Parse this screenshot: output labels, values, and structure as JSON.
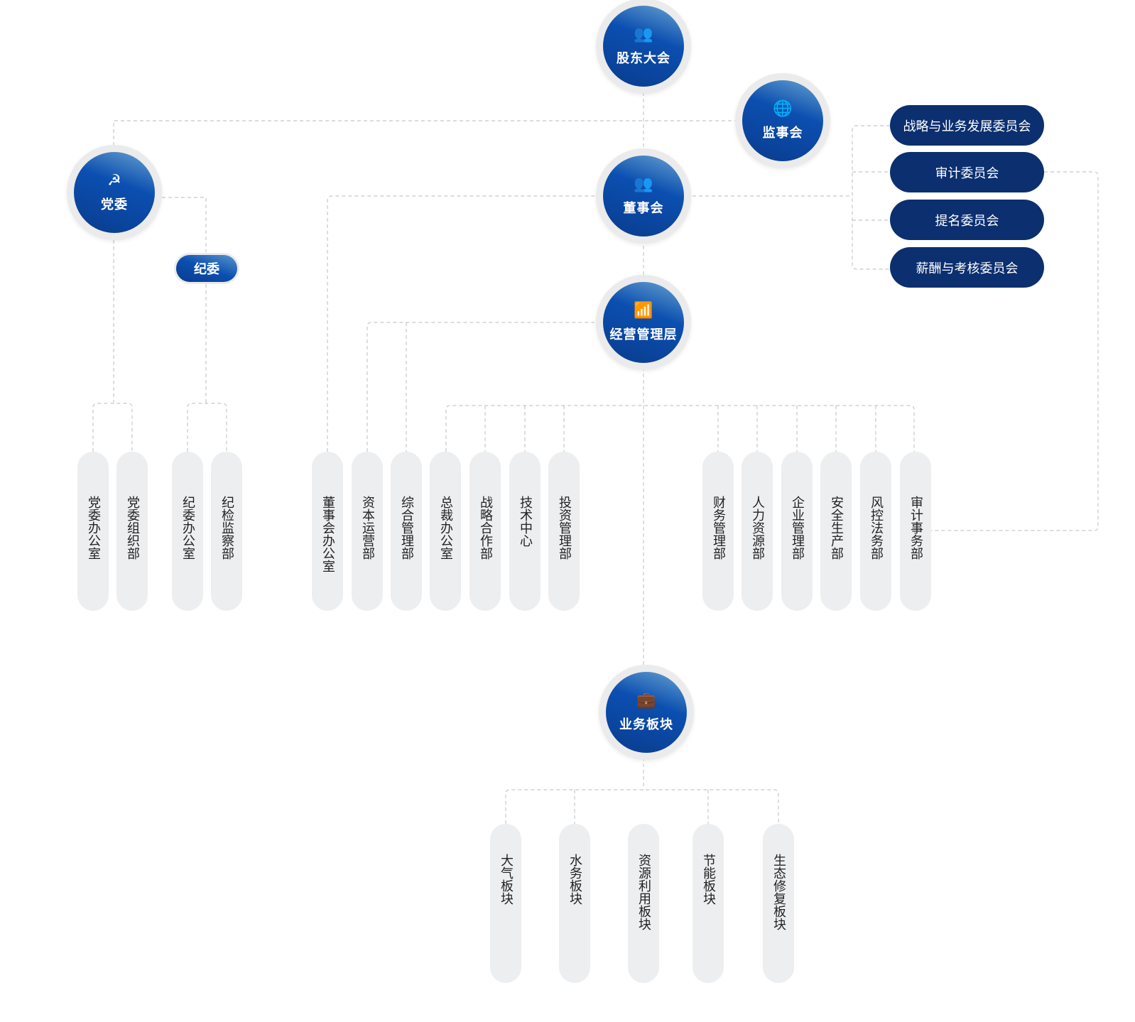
{
  "nodes": {
    "shareholders": {
      "label": "股东大会",
      "icon": "people-group-icon"
    },
    "supervisors": {
      "label": "监事会",
      "icon": "globe-people-icon"
    },
    "party": {
      "label": "党委",
      "icon": "hammer-sickle-icon"
    },
    "board": {
      "label": "董事会",
      "icon": "meeting-icon"
    },
    "management": {
      "label": "经营管理层",
      "icon": "bar-chart-up-icon"
    },
    "business": {
      "label": "业务板块",
      "icon": "briefcase-icon"
    },
    "discipline": {
      "label": "纪委"
    }
  },
  "committees": [
    "战略与业务发展委员会",
    "审计委员会",
    "提名委员会",
    "薪酬与考核委员会"
  ],
  "party_departments": [
    "党委办公室",
    "党委组织部"
  ],
  "discipline_departments": [
    "纪委办公室",
    "纪检监察部"
  ],
  "board_departments": [
    "董事会办公室"
  ],
  "management_left_departments": [
    "资本运营部",
    "综合管理部"
  ],
  "management_departments": [
    "总裁办公室",
    "战略合作部",
    "技术中心",
    "投资管理部",
    "财务管理部",
    "人力资源部",
    "企业管理部",
    "安全生产部",
    "风控法务部",
    "审计事务部"
  ],
  "business_segments": [
    "大气板块",
    "水务板块",
    "资源利用板块",
    "节能板块",
    "生态修复板块"
  ],
  "colors": {
    "node_blue": "#0b4fb0",
    "committee_navy": "#0b2f6f",
    "pill_gray": "#eceeef",
    "line": "#c8c8c8"
  }
}
